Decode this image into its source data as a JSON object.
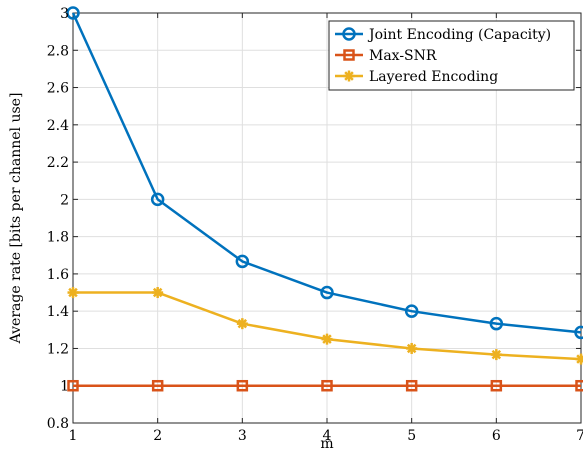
{
  "chart_data": {
    "type": "line",
    "title": "",
    "xlabel": "m",
    "ylabel": "Average rate [bits per channel use]",
    "xlim": [
      1,
      7
    ],
    "ylim": [
      0.8,
      3
    ],
    "x": [
      1,
      2,
      3,
      4,
      5,
      6,
      7
    ],
    "x_ticks": [
      1,
      2,
      3,
      4,
      5,
      6,
      7
    ],
    "x_tick_labels": [
      "1",
      "2",
      "3",
      "4",
      "5",
      "6",
      "7"
    ],
    "y_ticks": [
      0.8,
      1,
      1.2,
      1.4,
      1.6,
      1.8,
      2,
      2.2,
      2.4,
      2.6,
      2.8,
      3
    ],
    "y_tick_labels": [
      "0.8",
      "1",
      "1.2",
      "1.4",
      "1.6",
      "1.8",
      "2",
      "2.2",
      "2.4",
      "2.6",
      "2.8",
      "3"
    ],
    "grid": true,
    "legend_position": "top-right",
    "series": [
      {
        "name": "Joint Encoding (Capacity)",
        "values": [
          3,
          2,
          1.667,
          1.5,
          1.4,
          1.333,
          1.286
        ],
        "color": "#0072BD",
        "marker": "circle"
      },
      {
        "name": "Max-SNR",
        "values": [
          1,
          1,
          1,
          1,
          1,
          1,
          1
        ],
        "color": "#D95319",
        "marker": "square"
      },
      {
        "name": "Layered Encoding",
        "values": [
          1.5,
          1.5,
          1.333,
          1.25,
          1.2,
          1.167,
          1.143
        ],
        "color": "#EDB120",
        "marker": "asterisk"
      }
    ]
  }
}
